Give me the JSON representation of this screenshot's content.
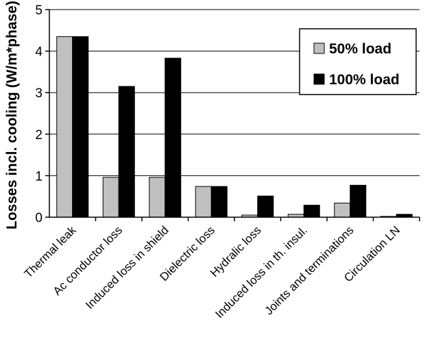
{
  "chart_data": {
    "type": "bar",
    "title": "",
    "xlabel": "",
    "ylabel": "Losses incl. cooling (W/m*phase)",
    "ylim": [
      0,
      5
    ],
    "yticks": [
      0,
      1,
      2,
      3,
      4,
      5
    ],
    "grid": true,
    "legend_position": "top-right",
    "categories": [
      "Thermal leak",
      "Ac conductor loss",
      "Induced loss in shield",
      "Dielectric loss",
      "Hydralic loss",
      "Induced loss in th. insul.",
      "Joints and terminations",
      "Circulation LN"
    ],
    "series": [
      {
        "name": "50% load",
        "color": "#c0c0c0",
        "values": [
          4.35,
          0.96,
          0.96,
          0.74,
          0.05,
          0.07,
          0.34,
          0.02
        ]
      },
      {
        "name": "100% load",
        "color": "#000000",
        "values": [
          4.35,
          3.15,
          3.83,
          0.74,
          0.51,
          0.29,
          0.77,
          0.07
        ]
      }
    ]
  }
}
